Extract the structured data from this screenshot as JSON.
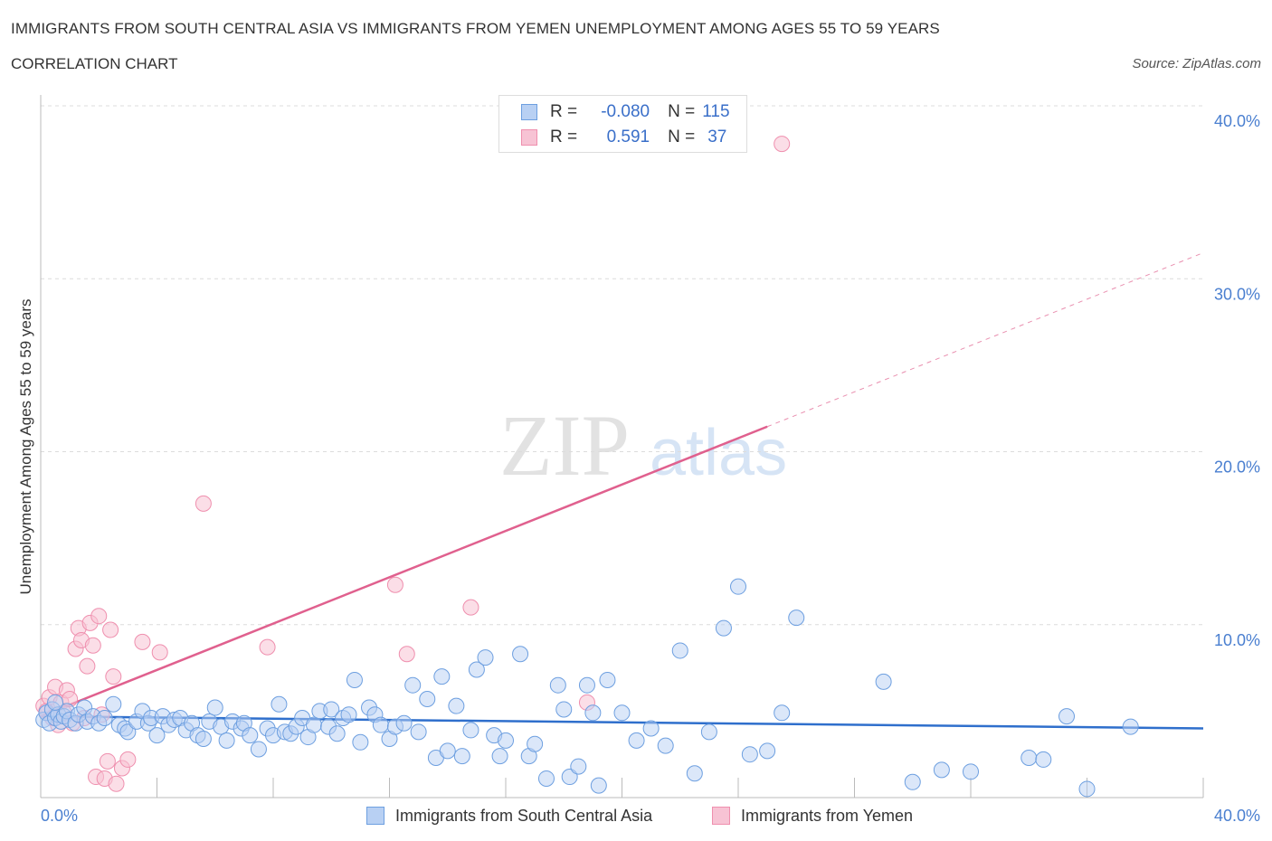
{
  "header": {
    "title": "IMMIGRANTS FROM SOUTH CENTRAL ASIA VS IMMIGRANTS FROM YEMEN UNEMPLOYMENT AMONG AGES 55 TO 59 YEARS",
    "subtitle": "CORRELATION CHART",
    "source": "Source: ZipAtlas.com"
  },
  "legend": {
    "r_label": "R =",
    "n_label": "N =",
    "blue": {
      "r": "-0.080",
      "n": "115"
    },
    "pink": {
      "r": "0.591",
      "n": "37"
    }
  },
  "watermark": {
    "zip": "ZIP",
    "atlas": "atlas"
  },
  "colors": {
    "blue": "#6d9fe0",
    "blue_fill": "#b8d0f3",
    "blue_line": "#2f6fcc",
    "pink": "#ef8fae",
    "pink_fill": "#f7c3d4",
    "pink_line": "#e0608e",
    "axis_text": "#4a7fd0"
  },
  "chart_data": {
    "type": "scatter",
    "title": "IMMIGRANTS FROM SOUTH CENTRAL ASIA VS IMMIGRANTS FROM YEMEN UNEMPLOYMENT AMONG AGES 55 TO 59 YEARS",
    "xlabel": "",
    "ylabel": "Unemployment Among Ages 55 to 59 years",
    "xlim": [
      0,
      40
    ],
    "ylim": [
      0,
      40
    ],
    "x_tick_labels": [
      "0.0%",
      "40.0%"
    ],
    "y_tick_values": [
      10,
      20,
      30,
      40
    ],
    "y_tick_labels": [
      "10.0%",
      "20.0%",
      "30.0%",
      "40.0%"
    ],
    "legend_position": "bottom-center",
    "series": [
      {
        "name": "Immigrants from South Central Asia",
        "color": "#6d9fe0",
        "trend": {
          "x": [
            0,
            40
          ],
          "y": [
            4.7,
            4.0
          ],
          "style": "solid"
        },
        "points": [
          [
            0.1,
            4.5
          ],
          [
            0.2,
            4.9
          ],
          [
            0.3,
            4.3
          ],
          [
            0.4,
            5.1
          ],
          [
            0.5,
            4.6
          ],
          [
            0.6,
            4.8
          ],
          [
            0.7,
            4.4
          ],
          [
            0.8,
            4.7
          ],
          [
            0.9,
            5.0
          ],
          [
            1.0,
            4.5
          ],
          [
            1.2,
            4.3
          ],
          [
            1.3,
            4.8
          ],
          [
            1.5,
            5.2
          ],
          [
            1.6,
            4.4
          ],
          [
            1.8,
            4.7
          ],
          [
            2.0,
            4.3
          ],
          [
            2.2,
            4.6
          ],
          [
            2.5,
            5.4
          ],
          [
            2.7,
            4.2
          ],
          [
            2.9,
            4.0
          ],
          [
            3.0,
            3.8
          ],
          [
            3.3,
            4.4
          ],
          [
            3.5,
            5.0
          ],
          [
            3.7,
            4.3
          ],
          [
            3.8,
            4.6
          ],
          [
            4.0,
            3.6
          ],
          [
            4.2,
            4.7
          ],
          [
            4.4,
            4.2
          ],
          [
            4.6,
            4.5
          ],
          [
            4.8,
            4.6
          ],
          [
            5.0,
            3.9
          ],
          [
            5.2,
            4.3
          ],
          [
            5.4,
            3.6
          ],
          [
            5.6,
            3.4
          ],
          [
            5.8,
            4.4
          ],
          [
            6.0,
            5.2
          ],
          [
            6.2,
            4.1
          ],
          [
            6.4,
            3.3
          ],
          [
            6.6,
            4.4
          ],
          [
            6.9,
            4.0
          ],
          [
            7.0,
            4.3
          ],
          [
            7.2,
            3.6
          ],
          [
            7.5,
            2.8
          ],
          [
            7.8,
            4.0
          ],
          [
            8.0,
            3.6
          ],
          [
            8.2,
            5.4
          ],
          [
            8.4,
            3.8
          ],
          [
            8.6,
            3.7
          ],
          [
            8.8,
            4.1
          ],
          [
            9.0,
            4.6
          ],
          [
            9.2,
            3.5
          ],
          [
            9.4,
            4.2
          ],
          [
            9.6,
            5.0
          ],
          [
            9.9,
            4.1
          ],
          [
            10.0,
            5.1
          ],
          [
            10.2,
            3.7
          ],
          [
            10.4,
            4.6
          ],
          [
            10.6,
            4.8
          ],
          [
            10.8,
            6.8
          ],
          [
            11.0,
            3.2
          ],
          [
            11.3,
            5.2
          ],
          [
            11.5,
            4.8
          ],
          [
            11.7,
            4.2
          ],
          [
            12.0,
            3.4
          ],
          [
            12.2,
            4.1
          ],
          [
            12.5,
            4.3
          ],
          [
            12.8,
            6.5
          ],
          [
            13.0,
            3.8
          ],
          [
            13.3,
            5.7
          ],
          [
            13.6,
            2.3
          ],
          [
            13.8,
            7.0
          ],
          [
            14.0,
            2.7
          ],
          [
            14.3,
            5.3
          ],
          [
            14.5,
            2.4
          ],
          [
            14.8,
            3.9
          ],
          [
            15.0,
            7.4
          ],
          [
            15.3,
            8.1
          ],
          [
            15.6,
            3.6
          ],
          [
            15.8,
            2.4
          ],
          [
            16.0,
            3.3
          ],
          [
            16.5,
            8.3
          ],
          [
            16.8,
            2.4
          ],
          [
            17.0,
            3.1
          ],
          [
            17.4,
            1.1
          ],
          [
            17.8,
            6.5
          ],
          [
            18.0,
            5.1
          ],
          [
            18.2,
            1.2
          ],
          [
            18.5,
            1.8
          ],
          [
            18.8,
            6.5
          ],
          [
            19.0,
            4.9
          ],
          [
            19.2,
            0.7
          ],
          [
            19.5,
            6.8
          ],
          [
            20.0,
            4.9
          ],
          [
            20.5,
            3.3
          ],
          [
            21.0,
            4.0
          ],
          [
            21.5,
            3.0
          ],
          [
            22.0,
            8.5
          ],
          [
            22.5,
            1.4
          ],
          [
            23.0,
            3.8
          ],
          [
            23.5,
            9.8
          ],
          [
            24.0,
            12.2
          ],
          [
            24.4,
            2.5
          ],
          [
            25.0,
            2.7
          ],
          [
            25.5,
            4.9
          ],
          [
            26.0,
            10.4
          ],
          [
            29.0,
            6.7
          ],
          [
            30.0,
            0.9
          ],
          [
            31.0,
            1.6
          ],
          [
            32.0,
            1.5
          ],
          [
            34.0,
            2.3
          ],
          [
            34.5,
            2.2
          ],
          [
            35.3,
            4.7
          ],
          [
            36.0,
            0.5
          ],
          [
            37.5,
            4.1
          ],
          [
            0.5,
            5.5
          ]
        ]
      },
      {
        "name": "Immigrants from Yemen",
        "color": "#ef8fae",
        "trend": {
          "x": [
            0,
            40
          ],
          "y": [
            4.7,
            31.5
          ],
          "solid_to_x": 25
        },
        "points": [
          [
            0.1,
            5.3
          ],
          [
            0.2,
            5.0
          ],
          [
            0.3,
            5.8
          ],
          [
            0.4,
            4.6
          ],
          [
            0.5,
            6.4
          ],
          [
            0.6,
            4.2
          ],
          [
            0.7,
            5.5
          ],
          [
            0.8,
            4.9
          ],
          [
            0.9,
            6.2
          ],
          [
            1.0,
            5.7
          ],
          [
            1.1,
            4.3
          ],
          [
            1.2,
            8.6
          ],
          [
            1.3,
            9.8
          ],
          [
            1.4,
            9.1
          ],
          [
            1.5,
            4.6
          ],
          [
            1.6,
            7.6
          ],
          [
            1.7,
            10.1
          ],
          [
            1.8,
            8.8
          ],
          [
            1.9,
            1.2
          ],
          [
            2.0,
            10.5
          ],
          [
            2.1,
            4.8
          ],
          [
            2.2,
            1.1
          ],
          [
            2.3,
            2.1
          ],
          [
            2.4,
            9.7
          ],
          [
            2.5,
            7.0
          ],
          [
            2.6,
            0.8
          ],
          [
            2.8,
            1.7
          ],
          [
            3.0,
            2.2
          ],
          [
            3.5,
            9.0
          ],
          [
            4.1,
            8.4
          ],
          [
            5.6,
            17.0
          ],
          [
            7.8,
            8.7
          ],
          [
            12.2,
            12.3
          ],
          [
            12.6,
            8.3
          ],
          [
            14.8,
            11.0
          ],
          [
            18.8,
            5.5
          ],
          [
            25.5,
            37.8
          ]
        ]
      }
    ]
  }
}
